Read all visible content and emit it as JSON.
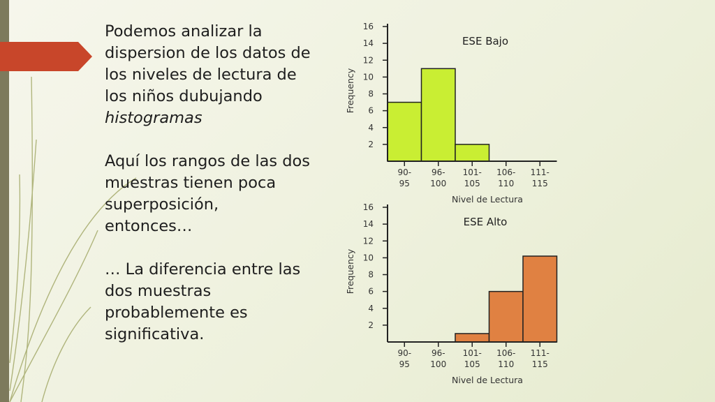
{
  "slide": {
    "paragraphs": [
      {
        "text": "Podemos analizar la dispersion de los datos de los niveles de lectura de los niños dubujando ",
        "emph": "histogramas"
      },
      {
        "text": "Aquí los rangos de las dos muestras tienen poca superposición, entonces…",
        "emph": ""
      },
      {
        "text": "… La diferencia entre las dos muestras probablemente es significativa.",
        "emph": ""
      }
    ]
  },
  "colors": {
    "sidebar": "#7d7a5c",
    "accent": "#c8462a",
    "vine": "#9aa05a",
    "bar_bajo": "#c9ee33",
    "bar_alto": "#e08142",
    "bar_stroke": "#222222"
  },
  "chart_data": [
    {
      "type": "bar",
      "title": "ESE Bajo",
      "xlabel": "Nivel de Lectura",
      "ylabel": "Frequency",
      "categories": [
        "90-95",
        "96-100",
        "101-105",
        "106-110",
        "111-115"
      ],
      "tick_labels": [
        [
          "90-",
          "95"
        ],
        [
          "96-",
          "100"
        ],
        [
          "101-",
          "105"
        ],
        [
          "106-",
          "110"
        ],
        [
          "111-",
          "115"
        ]
      ],
      "values": [
        7,
        11,
        2,
        0,
        0
      ],
      "yticks": [
        2,
        4,
        6,
        8,
        10,
        12,
        14,
        16
      ],
      "ylim": [
        0,
        16
      ],
      "color": "#c9ee33"
    },
    {
      "type": "bar",
      "title": "ESE Alto",
      "xlabel": "Nivel de Lectura",
      "ylabel": "Frequency",
      "categories": [
        "90-95",
        "96-100",
        "101-105",
        "106-110",
        "111-115"
      ],
      "tick_labels": [
        [
          "90-",
          "95"
        ],
        [
          "96-",
          "100"
        ],
        [
          "101-",
          "105"
        ],
        [
          "106-",
          "110"
        ],
        [
          "111-",
          "115"
        ]
      ],
      "values": [
        0,
        0,
        1,
        6,
        10.2
      ],
      "yticks": [
        2,
        4,
        6,
        8,
        10,
        12,
        14,
        16
      ],
      "ylim": [
        0,
        16
      ],
      "color": "#e08142"
    }
  ]
}
